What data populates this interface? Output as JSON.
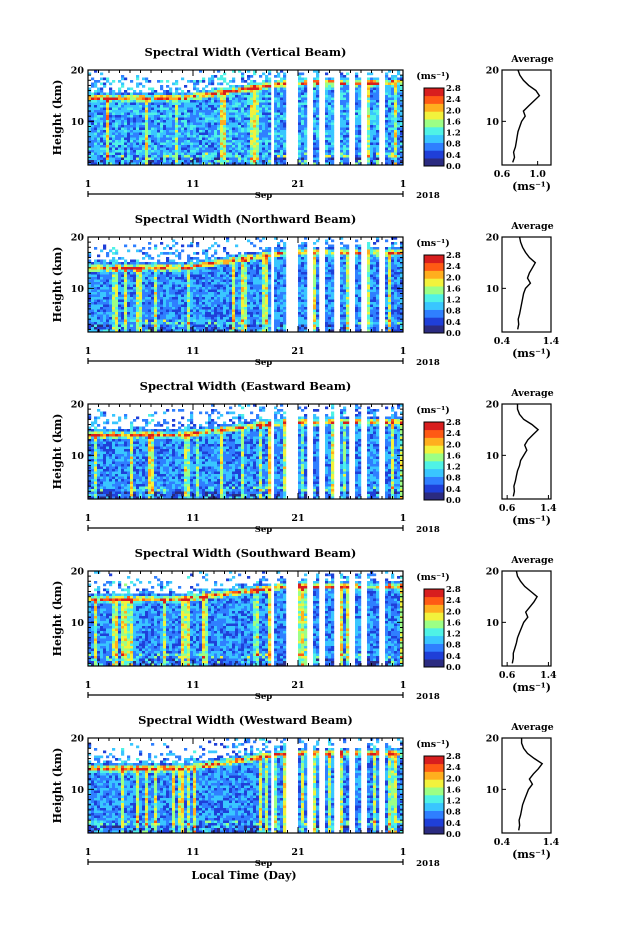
{
  "figure": {
    "x_axis_title": "Local Time (Day)",
    "month_label": "Sep",
    "year_label": "2018",
    "avg_title": "Average",
    "y_label": "Height (km)",
    "unit_label": "(ms⁻¹)",
    "colors": {
      "colormap": [
        "#2b2b80",
        "#1f3fd8",
        "#2f7fff",
        "#39c6ff",
        "#4ff2e6",
        "#9cff85",
        "#f2f23c",
        "#ffae1e",
        "#ff5a14",
        "#d81e1e"
      ],
      "background": "#ffffff",
      "gap": "#ffffff"
    }
  },
  "chart_data": [
    {
      "type": "heatmap",
      "title": "Spectral Width (Vertical Beam)",
      "x_ticks": [
        "1",
        "11",
        "21",
        "1"
      ],
      "x_range_days": [
        1,
        31
      ],
      "y_ticks": [
        "10",
        "20"
      ],
      "ylim": [
        1.5,
        20
      ],
      "colorbar_ticks": [
        "2.8",
        "2.4",
        "2.0",
        "1.6",
        "1.2",
        "0.8",
        "0.4",
        "0.0"
      ],
      "colorbar_range": [
        0,
        2.8
      ],
      "data_gaps_day": [
        [
          18.4,
          18.8
        ],
        [
          20.0,
          21.0
        ],
        [
          22.0,
          22.4
        ],
        [
          23.0,
          23.6
        ],
        [
          24.5,
          25.0
        ],
        [
          25.9,
          26.3
        ],
        [
          27.0,
          27.6
        ],
        [
          28.7,
          29.2
        ]
      ],
      "features": {
        "layer_height_km": [
          14.5,
          17.5
        ],
        "base_value": 0.9
      },
      "average_profile": {
        "title": "Average",
        "xlabel": "(ms⁻¹)",
        "x_ticks": [
          "0.6",
          "1.0"
        ],
        "xlim": [
          0.6,
          1.15
        ],
        "y_ticks": [
          "10",
          "20"
        ],
        "ylim": [
          1.5,
          20
        ],
        "heights": [
          2,
          3,
          4,
          5,
          6,
          7,
          8,
          9,
          10,
          11,
          12,
          13,
          14,
          15,
          16,
          17,
          18,
          19,
          20
        ],
        "values": [
          0.72,
          0.74,
          0.73,
          0.75,
          0.76,
          0.77,
          0.78,
          0.8,
          0.82,
          0.86,
          0.84,
          0.9,
          0.96,
          1.02,
          0.98,
          0.9,
          0.84,
          0.8,
          0.78
        ]
      }
    },
    {
      "type": "heatmap",
      "title": "Spectral Width (Northward Beam)",
      "x_ticks": [
        "1",
        "11",
        "21",
        "1"
      ],
      "x_range_days": [
        1,
        31
      ],
      "y_ticks": [
        "10",
        "20"
      ],
      "ylim": [
        1.5,
        20
      ],
      "colorbar_ticks": [
        "2.8",
        "2.4",
        "2.0",
        "1.6",
        "1.2",
        "0.8",
        "0.4",
        "0.0"
      ],
      "colorbar_range": [
        0,
        2.8
      ],
      "data_gaps_day": [
        [
          18.4,
          18.8
        ],
        [
          20.0,
          21.0
        ],
        [
          22.0,
          22.4
        ],
        [
          23.0,
          23.6
        ],
        [
          24.5,
          25.0
        ],
        [
          25.9,
          26.3
        ],
        [
          27.0,
          27.6
        ],
        [
          28.7,
          29.2
        ]
      ],
      "features": {
        "layer_height_km": [
          14.0,
          17.0
        ],
        "base_value": 0.8
      },
      "average_profile": {
        "title": "Average",
        "xlabel": "(ms⁻¹)",
        "x_ticks": [
          "0.4",
          "1.4"
        ],
        "xlim": [
          0.4,
          1.4
        ],
        "y_ticks": [
          "10",
          "20"
        ],
        "ylim": [
          1.5,
          20
        ],
        "heights": [
          2,
          3,
          4,
          5,
          6,
          7,
          8,
          9,
          10,
          11,
          12,
          13,
          14,
          15,
          16,
          17,
          18,
          19,
          20
        ],
        "values": [
          0.72,
          0.74,
          0.73,
          0.76,
          0.78,
          0.8,
          0.82,
          0.84,
          0.88,
          0.98,
          0.92,
          0.96,
          1.02,
          1.08,
          0.96,
          0.88,
          0.82,
          0.78,
          0.76
        ]
      }
    },
    {
      "type": "heatmap",
      "title": "Spectral Width (Eastward Beam)",
      "x_ticks": [
        "1",
        "11",
        "21",
        "1"
      ],
      "x_range_days": [
        1,
        31
      ],
      "y_ticks": [
        "10",
        "20"
      ],
      "ylim": [
        1.5,
        20
      ],
      "colorbar_ticks": [
        "2.8",
        "2.4",
        "2.0",
        "1.6",
        "1.2",
        "0.8",
        "0.4",
        "0.0"
      ],
      "colorbar_range": [
        0,
        2.8
      ],
      "data_gaps_day": [
        [
          18.4,
          18.8
        ],
        [
          20.0,
          21.0
        ],
        [
          22.0,
          22.4
        ],
        [
          23.0,
          23.6
        ],
        [
          24.5,
          25.0
        ],
        [
          25.9,
          26.3
        ],
        [
          27.0,
          27.6
        ],
        [
          28.7,
          29.2
        ]
      ],
      "features": {
        "layer_height_km": [
          14.0,
          16.5
        ],
        "base_value": 0.8
      },
      "average_profile": {
        "title": "Average",
        "xlabel": "(ms⁻¹)",
        "x_ticks": [
          "0.6",
          "1.4"
        ],
        "xlim": [
          0.5,
          1.45
        ],
        "y_ticks": [
          "10",
          "20"
        ],
        "ylim": [
          1.5,
          20
        ],
        "heights": [
          2,
          3,
          4,
          5,
          6,
          7,
          8,
          9,
          10,
          11,
          12,
          13,
          14,
          15,
          16,
          17,
          18,
          19,
          20
        ],
        "values": [
          0.72,
          0.74,
          0.73,
          0.76,
          0.78,
          0.8,
          0.84,
          0.86,
          0.92,
          0.98,
          0.94,
          1.0,
          1.1,
          1.2,
          1.08,
          0.92,
          0.84,
          0.8,
          0.8
        ]
      }
    },
    {
      "type": "heatmap",
      "title": "Spectral Width (Southward Beam)",
      "x_ticks": [
        "1",
        "11",
        "21",
        "1"
      ],
      "x_range_days": [
        1,
        31
      ],
      "y_ticks": [
        "10",
        "20"
      ],
      "ylim": [
        1.5,
        20
      ],
      "colorbar_ticks": [
        "2.8",
        "2.4",
        "2.0",
        "1.6",
        "1.2",
        "0.8",
        "0.4",
        "0.0"
      ],
      "colorbar_range": [
        0,
        2.8
      ],
      "data_gaps_day": [
        [
          18.4,
          18.8
        ],
        [
          20.0,
          21.0
        ],
        [
          22.0,
          22.4
        ],
        [
          23.0,
          23.6
        ],
        [
          24.5,
          25.0
        ],
        [
          25.9,
          26.3
        ],
        [
          27.0,
          27.6
        ],
        [
          28.7,
          29.2
        ]
      ],
      "features": {
        "layer_height_km": [
          14.5,
          17.0
        ],
        "base_value": 0.8
      },
      "average_profile": {
        "title": "Average",
        "xlabel": "(ms⁻¹)",
        "x_ticks": [
          "0.6",
          "1.4"
        ],
        "xlim": [
          0.5,
          1.45
        ],
        "y_ticks": [
          "10",
          "20"
        ],
        "ylim": [
          1.5,
          20
        ],
        "heights": [
          2,
          3,
          4,
          5,
          6,
          7,
          8,
          9,
          10,
          11,
          12,
          13,
          14,
          15,
          16,
          17,
          18,
          19,
          20
        ],
        "values": [
          0.7,
          0.72,
          0.72,
          0.75,
          0.78,
          0.8,
          0.84,
          0.88,
          0.92,
          1.0,
          0.96,
          1.04,
          1.12,
          1.18,
          1.06,
          0.94,
          0.86,
          0.8,
          0.78
        ]
      }
    },
    {
      "type": "heatmap",
      "title": "Spectral Width (Westward Beam)",
      "x_ticks": [
        "1",
        "11",
        "21",
        "1"
      ],
      "x_range_days": [
        1,
        31
      ],
      "y_ticks": [
        "10",
        "20"
      ],
      "ylim": [
        1.5,
        20
      ],
      "colorbar_ticks": [
        "2.8",
        "2.4",
        "2.0",
        "1.6",
        "1.2",
        "0.8",
        "0.4",
        "0.0"
      ],
      "colorbar_range": [
        0,
        2.8
      ],
      "data_gaps_day": [
        [
          18.4,
          18.8
        ],
        [
          20.0,
          21.0
        ],
        [
          22.0,
          22.4
        ],
        [
          23.0,
          23.6
        ],
        [
          24.5,
          25.0
        ],
        [
          25.9,
          26.3
        ],
        [
          27.0,
          27.6
        ],
        [
          28.7,
          29.2
        ]
      ],
      "features": {
        "layer_height_km": [
          14.0,
          17.0
        ],
        "base_value": 0.8
      },
      "average_profile": {
        "title": "Average",
        "xlabel": "(ms⁻¹)",
        "x_ticks": [
          "0.4",
          "1.4"
        ],
        "xlim": [
          0.4,
          1.4
        ],
        "y_ticks": [
          "10",
          "20"
        ],
        "ylim": [
          1.5,
          20
        ],
        "heights": [
          2,
          3,
          4,
          5,
          6,
          7,
          8,
          9,
          10,
          11,
          12,
          13,
          14,
          15,
          16,
          17,
          18,
          19,
          20
        ],
        "values": [
          0.74,
          0.76,
          0.75,
          0.78,
          0.8,
          0.82,
          0.86,
          0.9,
          0.94,
          1.02,
          0.96,
          1.04,
          1.14,
          1.22,
          1.06,
          0.92,
          0.84,
          0.8,
          0.8
        ]
      }
    }
  ]
}
